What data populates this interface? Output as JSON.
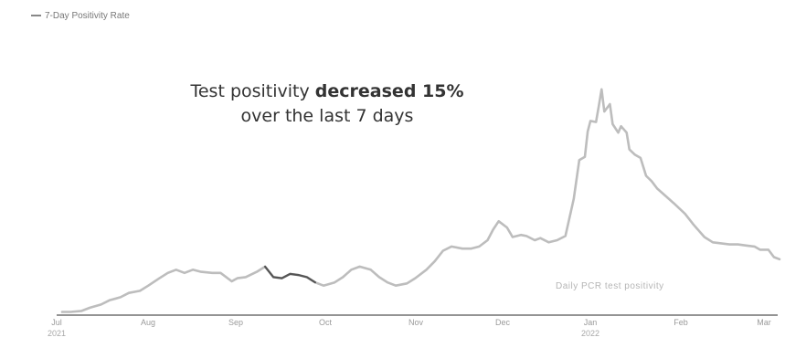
{
  "chart_data": {
    "type": "line",
    "legend": {
      "label": "7-Day Positivity Rate",
      "placement": "top-left"
    },
    "annotation": {
      "prefix": "Test positivity ",
      "bold": "decreased 15%",
      "line2": "over the last 7 days"
    },
    "series_label": "Daily PCR test positivity",
    "x_ticks": [
      "Jul",
      "Aug",
      "Sep",
      "Oct",
      "Nov",
      "Dec",
      "Jan",
      "Feb",
      "Mar"
    ],
    "x_year_labels": [
      "2021",
      "2022"
    ],
    "y_ticks": [
      "",
      "",
      "",
      "",
      "",
      "",
      "",
      "",
      "",
      ""
    ],
    "x_range_days": [
      0,
      258
    ],
    "ylim": [
      0,
      29
    ],
    "grid": false,
    "colors": {
      "line": "#bdbdbd",
      "highlight": "#555555",
      "axis": "#555555"
    },
    "series": [
      {
        "values": [
          [
            0,
            0.3
          ],
          [
            3,
            0.3
          ],
          [
            7,
            0.4
          ],
          [
            10,
            0.7
          ],
          [
            14,
            1.0
          ],
          [
            17,
            1.4
          ],
          [
            21,
            1.7
          ],
          [
            24,
            2.1
          ],
          [
            28,
            2.3
          ],
          [
            31,
            2.8
          ],
          [
            35,
            3.5
          ],
          [
            38,
            4.0
          ],
          [
            41,
            4.3
          ],
          [
            44,
            4.0
          ],
          [
            47,
            4.3
          ],
          [
            50,
            4.1
          ],
          [
            54,
            4.0
          ],
          [
            57,
            4.0
          ],
          [
            61,
            3.2
          ],
          [
            63,
            3.5
          ],
          [
            66,
            3.6
          ],
          [
            70,
            4.1
          ],
          [
            73,
            4.6
          ],
          [
            76,
            3.6
          ],
          [
            79,
            3.5
          ],
          [
            82,
            3.9
          ],
          [
            85,
            3.8
          ],
          [
            88,
            3.6
          ],
          [
            91,
            3.1
          ],
          [
            94,
            2.8
          ],
          [
            98,
            3.1
          ],
          [
            101,
            3.6
          ],
          [
            104,
            4.3
          ],
          [
            107,
            4.6
          ],
          [
            111,
            4.3
          ],
          [
            114,
            3.6
          ],
          [
            117,
            3.1
          ],
          [
            120,
            2.8
          ],
          [
            124,
            3.0
          ],
          [
            127,
            3.5
          ],
          [
            131,
            4.3
          ],
          [
            134,
            5.1
          ],
          [
            137,
            6.1
          ],
          [
            140,
            6.5
          ],
          [
            144,
            6.3
          ],
          [
            147,
            6.3
          ],
          [
            150,
            6.5
          ],
          [
            153,
            7.1
          ],
          [
            155,
            8.1
          ],
          [
            157,
            8.9
          ],
          [
            160,
            8.3
          ],
          [
            162,
            7.4
          ],
          [
            165,
            7.6
          ],
          [
            167,
            7.5
          ],
          [
            170,
            7.1
          ],
          [
            172,
            7.3
          ],
          [
            175,
            6.9
          ],
          [
            178,
            7.1
          ],
          [
            181,
            7.5
          ],
          [
            184,
            11.0
          ],
          [
            186,
            14.7
          ],
          [
            188,
            15.0
          ],
          [
            189,
            17.4
          ],
          [
            190,
            18.4
          ],
          [
            192,
            18.3
          ],
          [
            193,
            19.8
          ],
          [
            194,
            21.4
          ],
          [
            195,
            19.3
          ],
          [
            197,
            20.0
          ],
          [
            198,
            18.1
          ],
          [
            200,
            17.3
          ],
          [
            201,
            17.9
          ],
          [
            203,
            17.3
          ],
          [
            204,
            15.7
          ],
          [
            206,
            15.2
          ],
          [
            208,
            14.9
          ],
          [
            210,
            13.2
          ],
          [
            212,
            12.7
          ],
          [
            214,
            12.0
          ],
          [
            217,
            11.3
          ],
          [
            220,
            10.6
          ],
          [
            224,
            9.6
          ],
          [
            227,
            8.6
          ],
          [
            231,
            7.4
          ],
          [
            234,
            6.9
          ],
          [
            237,
            6.8
          ],
          [
            240,
            6.7
          ],
          [
            243,
            6.7
          ],
          [
            246,
            6.6
          ],
          [
            249,
            6.5
          ],
          [
            251,
            6.2
          ],
          [
            254,
            6.2
          ],
          [
            256,
            5.5
          ],
          [
            258,
            5.3
          ]
        ]
      }
    ],
    "highlights": [
      {
        "x_start": 72,
        "x_end": 92
      },
      {
        "x_start": 111,
        "x_end": 113
      }
    ]
  }
}
